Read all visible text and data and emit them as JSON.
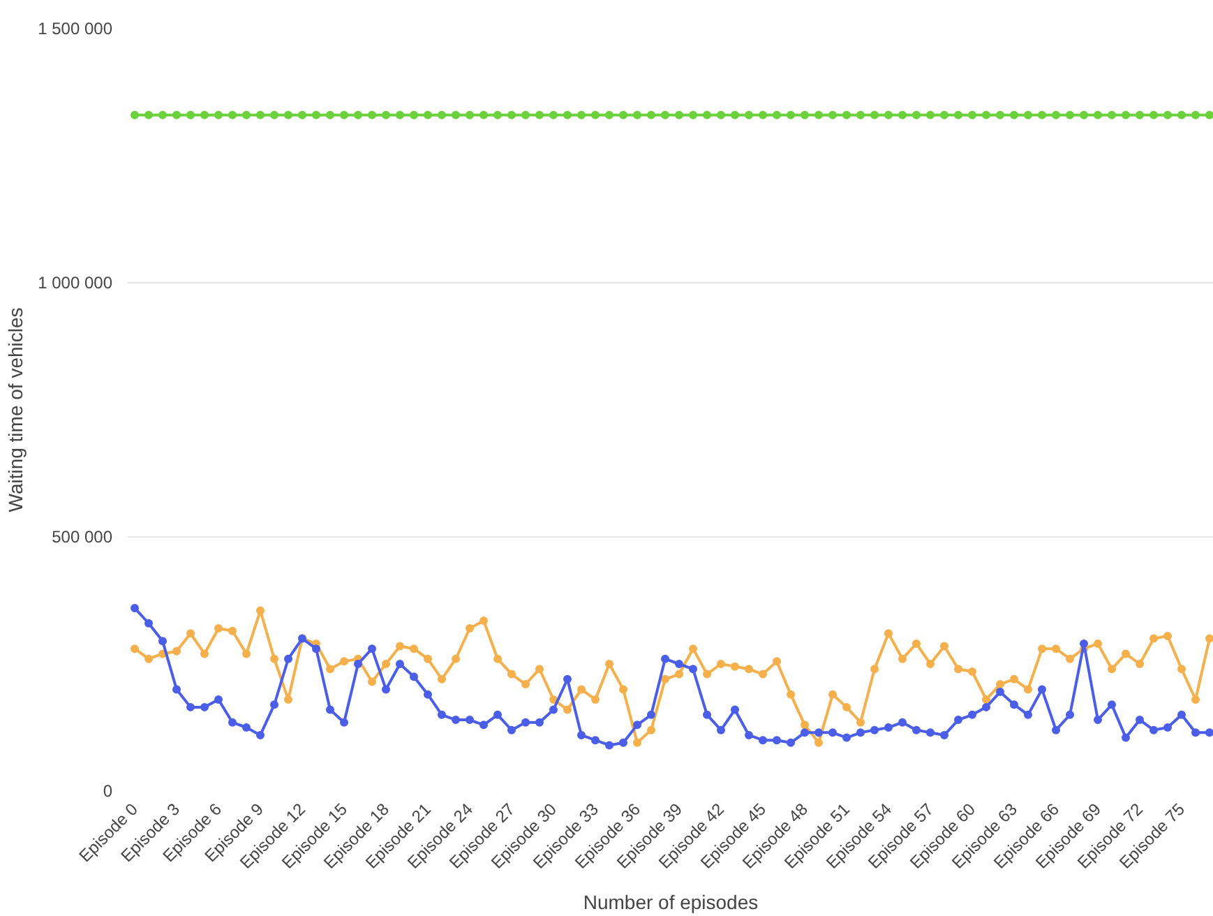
{
  "chart_data": {
    "type": "line",
    "xlabel": "Number of episodes",
    "ylabel": "Waiting time of vehicles",
    "categories": [
      "Episode 0",
      null,
      null,
      "Episode 3",
      null,
      null,
      "Episode 6",
      null,
      null,
      "Episode 9",
      null,
      null,
      "Episode 12",
      null,
      null,
      "Episode 15",
      null,
      null,
      "Episode 18",
      null,
      null,
      "Episode 21",
      null,
      null,
      "Episode 24",
      null,
      null,
      "Episode 27",
      null,
      null,
      "Episode 30",
      null,
      null,
      "Episode 33",
      null,
      null,
      "Episode 36",
      null,
      null,
      "Episode 39",
      null,
      null,
      "Episode 42",
      null,
      null,
      "Episode 45",
      null,
      null,
      "Episode 48",
      null,
      null,
      "Episode 51",
      null,
      null,
      "Episode 54",
      null,
      null,
      "Episode 57",
      null,
      null,
      "Episode 60",
      null,
      null,
      "Episode 63",
      null,
      null,
      "Episode 66",
      null,
      null,
      "Episode 69",
      null,
      null,
      "Episode 72",
      null,
      null,
      "Episode 75",
      null,
      null
    ],
    "series": [
      {
        "color": "#6cd23c",
        "values": [
          1330000,
          1330000,
          1330000,
          1330000,
          1330000,
          1330000,
          1330000,
          1330000,
          1330000,
          1330000,
          1330000,
          1330000,
          1330000,
          1330000,
          1330000,
          1330000,
          1330000,
          1330000,
          1330000,
          1330000,
          1330000,
          1330000,
          1330000,
          1330000,
          1330000,
          1330000,
          1330000,
          1330000,
          1330000,
          1330000,
          1330000,
          1330000,
          1330000,
          1330000,
          1330000,
          1330000,
          1330000,
          1330000,
          1330000,
          1330000,
          1330000,
          1330000,
          1330000,
          1330000,
          1330000,
          1330000,
          1330000,
          1330000,
          1330000,
          1330000,
          1330000,
          1330000,
          1330000,
          1330000,
          1330000,
          1330000,
          1330000,
          1330000,
          1330000,
          1330000,
          1330000,
          1330000,
          1330000,
          1330000,
          1330000,
          1330000,
          1330000,
          1330000,
          1330000,
          1330000,
          1330000,
          1330000,
          1330000,
          1330000,
          1330000,
          1330000,
          1330000,
          1330000
        ]
      },
      {
        "color": "#f5b04c",
        "values": [
          280000,
          260000,
          270000,
          275000,
          310000,
          270000,
          320000,
          315000,
          270000,
          355000,
          260000,
          180000,
          300000,
          290000,
          240000,
          255000,
          260000,
          215000,
          250000,
          285000,
          280000,
          260000,
          220000,
          260000,
          320000,
          335000,
          260000,
          230000,
          210000,
          240000,
          180000,
          160000,
          200000,
          180000,
          250000,
          200000,
          95000,
          120000,
          220000,
          230000,
          280000,
          230000,
          250000,
          245000,
          240000,
          230000,
          255000,
          190000,
          130000,
          95000,
          190000,
          165000,
          135000,
          240000,
          310000,
          260000,
          290000,
          250000,
          285000,
          240000,
          235000,
          180000,
          210000,
          220000,
          200000,
          280000,
          280000,
          260000,
          280000,
          290000,
          240000,
          270000,
          250000,
          300000,
          305000,
          240000,
          180000,
          300000
        ]
      },
      {
        "color": "#4a5ee8",
        "values": [
          360000,
          330000,
          295000,
          200000,
          165000,
          165000,
          180000,
          135000,
          125000,
          110000,
          170000,
          260000,
          300000,
          280000,
          160000,
          135000,
          250000,
          280000,
          200000,
          250000,
          225000,
          190000,
          150000,
          140000,
          140000,
          130000,
          150000,
          120000,
          135000,
          135000,
          160000,
          220000,
          110000,
          100000,
          90000,
          95000,
          130000,
          150000,
          260000,
          250000,
          240000,
          150000,
          120000,
          160000,
          110000,
          100000,
          100000,
          95000,
          115000,
          115000,
          115000,
          105000,
          115000,
          120000,
          125000,
          135000,
          120000,
          115000,
          110000,
          140000,
          150000,
          165000,
          195000,
          170000,
          150000,
          200000,
          120000,
          150000,
          290000,
          140000,
          170000,
          105000,
          140000,
          120000,
          125000,
          150000,
          115000,
          115000
        ]
      }
    ],
    "ylim": [
      0,
      1500000
    ],
    "yticks": [
      {
        "value": 0,
        "label": "0"
      },
      {
        "value": 500000,
        "label": "500 000"
      },
      {
        "value": 1000000,
        "label": "1 000 000"
      },
      {
        "value": 1500000,
        "label": "1 500 000"
      }
    ],
    "grid": "y",
    "marker": "circle",
    "line_style": "solid"
  }
}
